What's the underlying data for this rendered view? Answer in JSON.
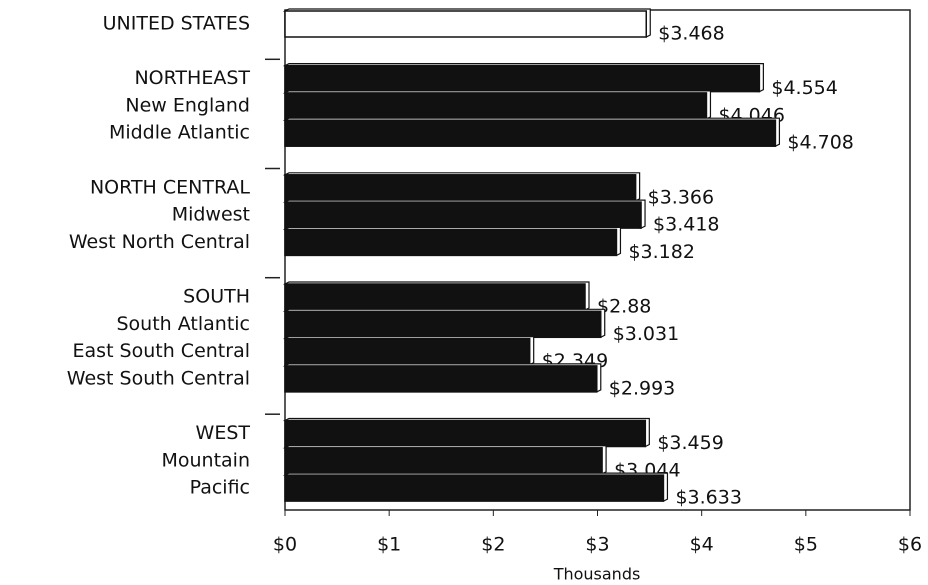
{
  "chart_data": {
    "type": "bar",
    "orientation": "horizontal",
    "categories": [
      "UNITED STATES",
      "NORTHEAST",
      "New England",
      "Middle Atlantic",
      "NORTH CENTRAL",
      "Midwest",
      "West North Central",
      "SOUTH",
      "South Atlantic",
      "East South Central",
      "West South Central",
      "WEST",
      "Mountain",
      "Pacific"
    ],
    "values": [
      3.468,
      4.554,
      4.046,
      4.708,
      3.366,
      3.418,
      3.182,
      2.88,
      3.031,
      2.349,
      2.993,
      3.459,
      3.044,
      3.633
    ],
    "value_labels": [
      "$3.468",
      "$4.554",
      "$4.046",
      "$4.708",
      "$3.366",
      "$3.418",
      "$3.182",
      "$2.88",
      "$3.031",
      "$2.349",
      "$2.993",
      "$3.459",
      "$3.044",
      "$3.633"
    ],
    "colors": [
      "#ffffff",
      "#111111",
      "#111111",
      "#111111",
      "#111111",
      "#111111",
      "#111111",
      "#111111",
      "#111111",
      "#111111",
      "#111111",
      "#111111",
      "#111111",
      "#111111"
    ],
    "xlabel": "Thousands",
    "xlim": [
      0,
      6
    ],
    "xticks": [
      {
        "value": 0,
        "label": "$0"
      },
      {
        "value": 1,
        "label": "$1"
      },
      {
        "value": 2,
        "label": "$2"
      },
      {
        "value": 3,
        "label": "$3"
      },
      {
        "value": 4,
        "label": "$4"
      },
      {
        "value": 5,
        "label": "$5"
      },
      {
        "value": 6,
        "label": "$6"
      }
    ]
  }
}
